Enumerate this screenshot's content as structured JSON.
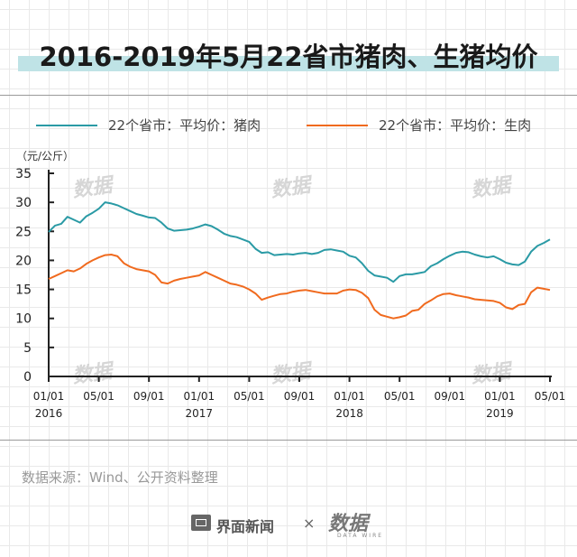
{
  "title": "2016-2019年5月22省市猪肉、生猪均价",
  "unit_label": "（元/公斤）",
  "source": "数据来源：Wind、公开资料整理",
  "footer": {
    "brand_left": "界面新闻",
    "separator": "×",
    "brand_right": "数据",
    "brand_right_sub": "DATA WIRE"
  },
  "watermark": "数据",
  "colors": {
    "pork": "#2a9aa5",
    "hog": "#f06a1e",
    "axis": "#222222",
    "title_band": "#bfe3e6"
  },
  "chart_data": {
    "type": "line",
    "ylim": [
      0,
      35
    ],
    "yticks": [
      0,
      5,
      10,
      15,
      20,
      25,
      30,
      35
    ],
    "x_range": [
      0,
      40
    ],
    "x_ticks": [
      {
        "x": 0,
        "label": "01/01",
        "year": "2016"
      },
      {
        "x": 4,
        "label": "05/01",
        "year": ""
      },
      {
        "x": 8,
        "label": "09/01",
        "year": ""
      },
      {
        "x": 12,
        "label": "01/01",
        "year": "2017"
      },
      {
        "x": 16,
        "label": "05/01",
        "year": ""
      },
      {
        "x": 20,
        "label": "09/01",
        "year": ""
      },
      {
        "x": 24,
        "label": "01/01",
        "year": "2018"
      },
      {
        "x": 28,
        "label": "05/01",
        "year": ""
      },
      {
        "x": 32,
        "label": "09/01",
        "year": ""
      },
      {
        "x": 36,
        "label": "01/01",
        "year": "2019"
      },
      {
        "x": 40,
        "label": "05/01",
        "year": ""
      }
    ],
    "series": [
      {
        "name": "22个省市：平均价：猪肉",
        "color": "#2a9aa5",
        "x": [
          0,
          0.5,
          1,
          1.5,
          2,
          2.5,
          3,
          3.5,
          4,
          4.5,
          5,
          5.5,
          6,
          6.5,
          7,
          7.5,
          8,
          8.5,
          9,
          9.5,
          10,
          10.5,
          11,
          11.5,
          12,
          12.5,
          13,
          13.5,
          14,
          14.5,
          15,
          15.5,
          16,
          16.5,
          17,
          17.5,
          18,
          18.5,
          19,
          19.5,
          20,
          20.5,
          21,
          21.5,
          22,
          22.5,
          23,
          23.5,
          24,
          24.5,
          25,
          25.5,
          26,
          26.5,
          27,
          27.5,
          28,
          28.5,
          29,
          29.5,
          30,
          30.5,
          31,
          31.5,
          32,
          32.5,
          33,
          33.5,
          34,
          34.5,
          35,
          35.5,
          36,
          36.5,
          37,
          37.5,
          38,
          38.5,
          39,
          39.5,
          40
        ],
        "values": [
          24.9,
          26.0,
          26.3,
          27.5,
          27.0,
          26.5,
          27.6,
          28.2,
          28.9,
          30.0,
          29.8,
          29.5,
          29.0,
          28.5,
          28.0,
          27.7,
          27.4,
          27.3,
          26.5,
          25.5,
          25.1,
          25.2,
          25.3,
          25.5,
          25.8,
          26.2,
          25.9,
          25.3,
          24.6,
          24.2,
          24.0,
          23.6,
          23.2,
          22.0,
          21.3,
          21.4,
          20.9,
          21.0,
          21.1,
          21.0,
          21.2,
          21.3,
          21.1,
          21.3,
          21.8,
          21.9,
          21.7,
          21.5,
          20.8,
          20.5,
          19.5,
          18.2,
          17.4,
          17.2,
          17.0,
          16.3,
          17.3,
          17.6,
          17.6,
          17.8,
          18.0,
          19.0,
          19.5,
          20.2,
          20.8,
          21.3,
          21.5,
          21.4,
          21.0,
          20.7,
          20.5,
          20.7,
          20.2,
          19.6,
          19.3,
          19.2,
          19.8,
          21.5,
          22.5,
          23.0,
          23.6
        ]
      },
      {
        "name": "22个省市：平均价：生肉",
        "color": "#f06a1e",
        "x": [
          0,
          0.5,
          1,
          1.5,
          2,
          2.5,
          3,
          3.5,
          4,
          4.5,
          5,
          5.5,
          6,
          6.5,
          7,
          7.5,
          8,
          8.5,
          9,
          9.5,
          10,
          10.5,
          11,
          11.5,
          12,
          12.5,
          13,
          13.5,
          14,
          14.5,
          15,
          15.5,
          16,
          16.5,
          17,
          17.5,
          18,
          18.5,
          19,
          19.5,
          20,
          20.5,
          21,
          21.5,
          22,
          22.5,
          23,
          23.5,
          24,
          24.5,
          25,
          25.5,
          26,
          26.5,
          27,
          27.5,
          28,
          28.5,
          29,
          29.5,
          30,
          30.5,
          31,
          31.5,
          32,
          32.5,
          33,
          33.5,
          34,
          34.5,
          35,
          35.5,
          36,
          36.5,
          37,
          37.5,
          38,
          38.5,
          39,
          39.5,
          40
        ],
        "values": [
          16.8,
          17.3,
          17.8,
          18.3,
          18.1,
          18.6,
          19.4,
          20.0,
          20.5,
          20.9,
          21.0,
          20.7,
          19.5,
          18.9,
          18.5,
          18.3,
          18.1,
          17.5,
          16.2,
          16.0,
          16.5,
          16.8,
          17.0,
          17.2,
          17.4,
          18.0,
          17.5,
          17.0,
          16.5,
          16.0,
          15.8,
          15.5,
          15.0,
          14.3,
          13.2,
          13.6,
          13.9,
          14.2,
          14.3,
          14.6,
          14.8,
          14.9,
          14.7,
          14.5,
          14.3,
          14.3,
          14.3,
          14.8,
          15.0,
          14.9,
          14.4,
          13.5,
          11.5,
          10.6,
          10.3,
          10.0,
          10.2,
          10.5,
          11.3,
          11.5,
          12.5,
          13.1,
          13.8,
          14.2,
          14.3,
          14.0,
          13.8,
          13.6,
          13.3,
          13.2,
          13.1,
          13.0,
          12.7,
          11.9,
          11.6,
          12.3,
          12.5,
          14.5,
          15.3,
          15.1,
          14.9
        ]
      }
    ],
    "grid": false,
    "legend_position": "top"
  }
}
